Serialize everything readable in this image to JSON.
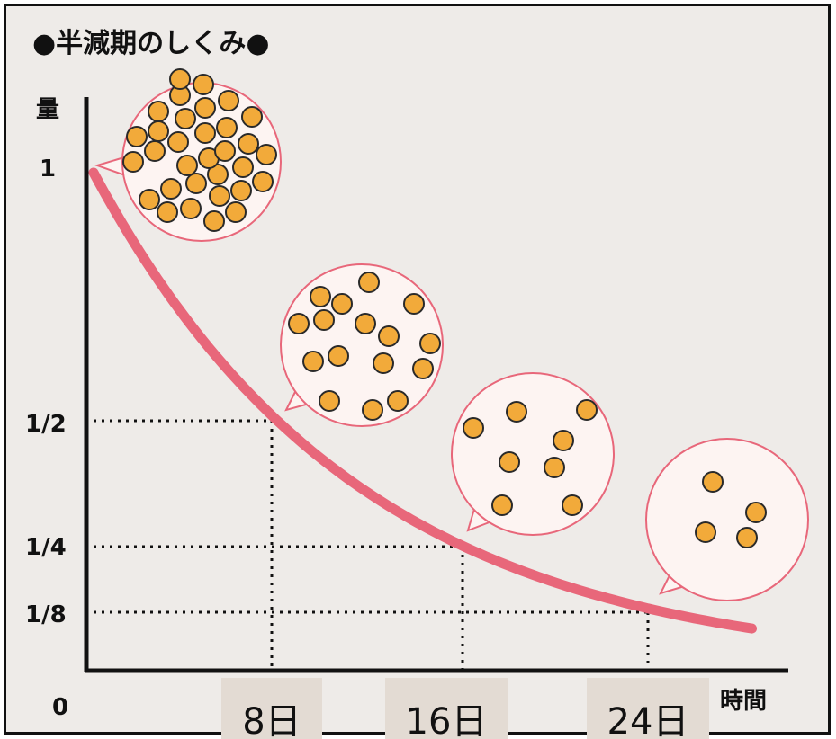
{
  "title": "●半減期のしくみ●",
  "y_axis": {
    "label": "量",
    "ticks": [
      {
        "value": 1,
        "label": "1"
      },
      {
        "value": 0.5,
        "label": "1/2"
      },
      {
        "value": 0.25,
        "label": "1/4"
      },
      {
        "value": 0.125,
        "label": "1/8"
      }
    ],
    "origin": "0"
  },
  "x_axis": {
    "label": "時間",
    "ticks": [
      {
        "value": 8,
        "label": "8日"
      },
      {
        "value": 16,
        "label": "16日"
      },
      {
        "value": 24,
        "label": "24日"
      }
    ]
  },
  "curve": {
    "type": "exponential-decay",
    "start": 1,
    "half_life_days": 8
  },
  "particle_bubbles": [
    {
      "count": 32
    },
    {
      "count": 16
    },
    {
      "count": 8
    },
    {
      "count": 4
    }
  ],
  "colors": {
    "background": "#eeebe8",
    "curve": "#e8677a",
    "bubble_fill": "#fdf4f2",
    "bubble_stroke": "#e8677a",
    "particle_fill": "#f2aa3a",
    "particle_stroke": "#2a2a2a",
    "axis": "#111111",
    "tick_box": "#e3dbd3"
  }
}
